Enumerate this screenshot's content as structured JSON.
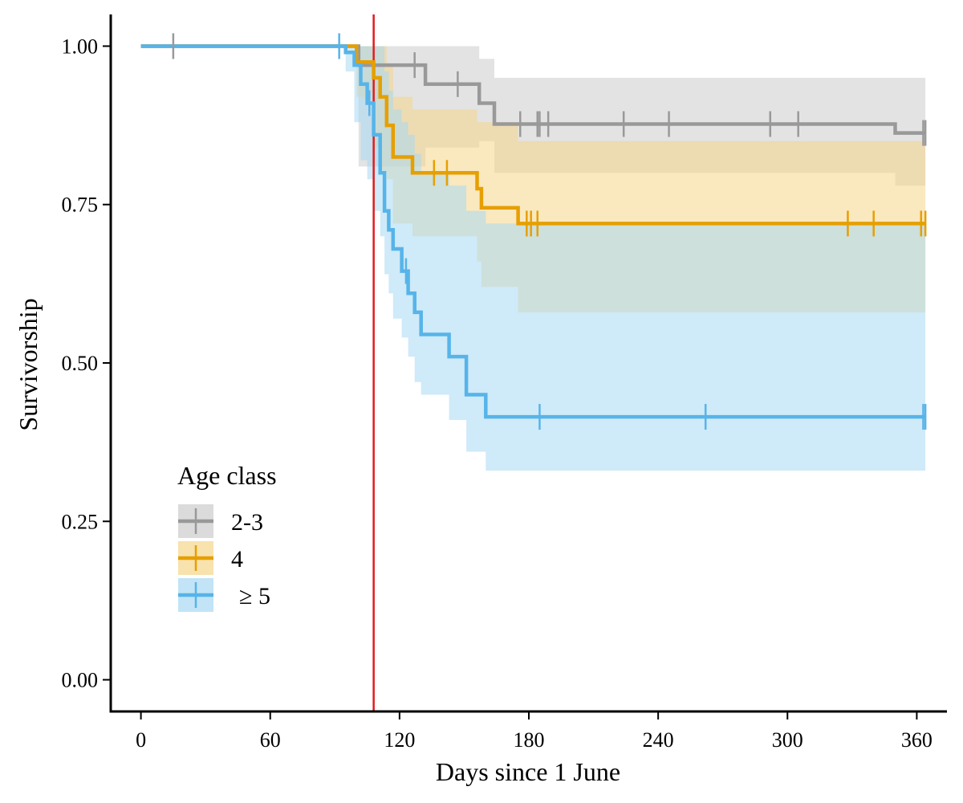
{
  "chart_data": {
    "type": "line",
    "subtype": "kaplan-meier survival step curve with confidence bands",
    "title": "",
    "xlabel": "Days since 1 June",
    "ylabel": "Survivorship",
    "xlim": [
      -14,
      374
    ],
    "ylim": [
      -0.05,
      1.05
    ],
    "x_ticks": [
      0,
      60,
      120,
      180,
      240,
      300,
      360
    ],
    "x_tick_labels": [
      "0",
      "60",
      "120",
      "180",
      "240",
      "300",
      "360"
    ],
    "y_ticks": [
      0.0,
      0.25,
      0.5,
      0.75,
      1.0
    ],
    "y_tick_labels": [
      "0.00",
      "0.25",
      "0.50",
      "0.75",
      "1.00"
    ],
    "grid": false,
    "reference_line": {
      "x": 108,
      "color": "#e31a1c"
    },
    "legend": {
      "title": "Age class",
      "position": "bottom-left"
    },
    "series": [
      {
        "name": "2-3",
        "color": "#999999",
        "band_color": "#cccccc",
        "curve": [
          [
            0,
            1.0
          ],
          [
            101,
            0.97
          ],
          [
            132,
            0.94
          ],
          [
            157,
            0.91
          ],
          [
            164,
            0.877
          ],
          [
            350,
            0.863
          ],
          [
            364,
            0.863
          ]
        ],
        "censor": [
          15,
          127,
          147,
          176,
          184,
          185,
          189,
          224,
          245,
          292,
          305,
          363,
          364
        ],
        "band": [
          [
            0,
            1.0,
            1.0
          ],
          [
            101,
            0.81,
            1.0
          ],
          [
            105,
            0.81,
            1.0
          ],
          [
            132,
            0.84,
            1.0
          ],
          [
            157,
            0.85,
            0.98
          ],
          [
            164,
            0.8,
            0.95
          ],
          [
            350,
            0.78,
            0.95
          ],
          [
            364,
            0.78,
            0.945
          ]
        ]
      },
      {
        "name": "4",
        "color": "#e69f00",
        "band_color": "#f5d58a",
        "curve": [
          [
            0,
            1.0
          ],
          [
            97,
            1.0
          ],
          [
            100,
            0.975
          ],
          [
            108,
            0.95
          ],
          [
            111,
            0.92
          ],
          [
            114,
            0.875
          ],
          [
            117,
            0.825
          ],
          [
            126,
            0.8
          ],
          [
            156,
            0.775
          ],
          [
            158,
            0.745
          ],
          [
            175,
            0.72
          ],
          [
            364,
            0.72
          ]
        ],
        "censor": [
          136,
          142,
          179,
          181,
          184,
          328,
          340,
          362,
          364
        ],
        "band": [
          [
            0,
            1.0,
            1.0
          ],
          [
            100,
            0.92,
            1.0
          ],
          [
            108,
            0.84,
            1.0
          ],
          [
            111,
            0.8,
            1.0
          ],
          [
            114,
            0.79,
            0.97
          ],
          [
            117,
            0.72,
            0.92
          ],
          [
            126,
            0.7,
            0.9
          ],
          [
            156,
            0.66,
            0.88
          ],
          [
            158,
            0.62,
            0.88
          ],
          [
            175,
            0.58,
            0.85
          ],
          [
            364,
            0.58,
            0.835
          ]
        ]
      },
      {
        "name": "≥ 5",
        "color": "#56b4e9",
        "band_color": "#a8d8f2",
        "curve": [
          [
            0,
            1.0
          ],
          [
            95,
            0.99
          ],
          [
            99,
            0.97
          ],
          [
            102,
            0.94
          ],
          [
            105,
            0.91
          ],
          [
            108,
            0.86
          ],
          [
            111,
            0.8
          ],
          [
            113,
            0.74
          ],
          [
            115,
            0.71
          ],
          [
            117,
            0.68
          ],
          [
            121,
            0.645
          ],
          [
            124,
            0.61
          ],
          [
            127,
            0.58
          ],
          [
            130,
            0.545
          ],
          [
            143,
            0.51
          ],
          [
            151,
            0.45
          ],
          [
            160,
            0.415
          ],
          [
            364,
            0.415
          ]
        ],
        "censor": [
          92,
          106,
          123,
          185,
          262,
          363,
          364
        ],
        "band": [
          [
            0,
            1.0,
            1.0
          ],
          [
            95,
            0.96,
            1.0
          ],
          [
            99,
            0.88,
            1.0
          ],
          [
            102,
            0.82,
            1.0
          ],
          [
            105,
            0.79,
            1.0
          ],
          [
            108,
            0.74,
            1.0
          ],
          [
            111,
            0.7,
            1.0
          ],
          [
            113,
            0.64,
            0.96
          ],
          [
            115,
            0.61,
            0.93
          ],
          [
            117,
            0.57,
            0.9
          ],
          [
            121,
            0.54,
            0.88
          ],
          [
            124,
            0.51,
            0.86
          ],
          [
            127,
            0.47,
            0.83
          ],
          [
            130,
            0.45,
            0.8
          ],
          [
            143,
            0.41,
            0.78
          ],
          [
            151,
            0.36,
            0.74
          ],
          [
            160,
            0.33,
            0.72
          ],
          [
            364,
            0.33,
            0.72
          ]
        ]
      }
    ]
  }
}
